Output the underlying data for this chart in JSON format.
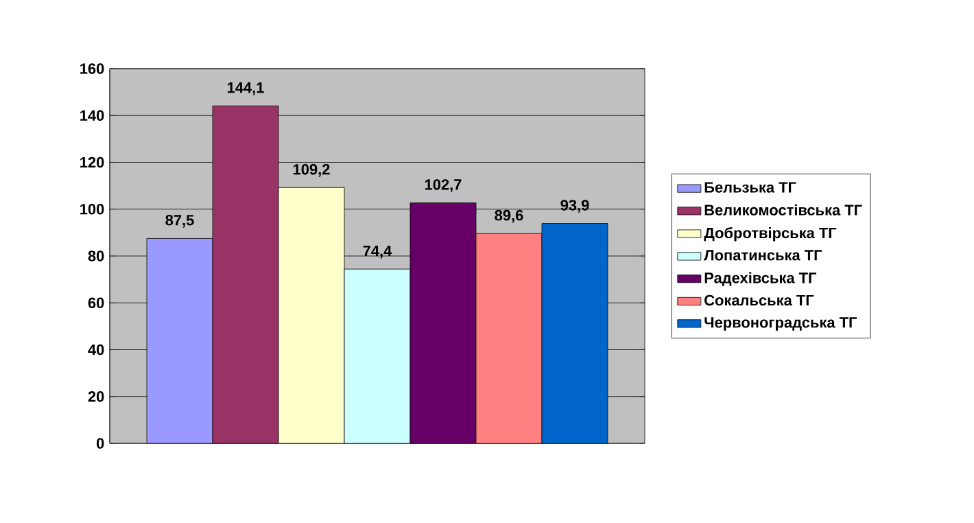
{
  "chart_data": {
    "type": "bar",
    "categories": [
      null
    ],
    "series": [
      {
        "name": "Бельзька ТГ",
        "color": "#9999ff",
        "values": [
          87.5
        ],
        "value_labels": [
          "87,5"
        ]
      },
      {
        "name": "Великомостівська ТГ",
        "color": "#993366",
        "values": [
          144.1
        ],
        "value_labels": [
          "144,1"
        ]
      },
      {
        "name": "Добротвірська ТГ",
        "color": "#ffffcc",
        "values": [
          109.2
        ],
        "value_labels": [
          "109,2"
        ]
      },
      {
        "name": "Лопатинська ТГ",
        "color": "#ccffff",
        "values": [
          74.4
        ],
        "value_labels": [
          "74,4"
        ]
      },
      {
        "name": "Радехівська ТГ",
        "color": "#660066",
        "values": [
          102.7
        ],
        "value_labels": [
          "102,7"
        ]
      },
      {
        "name": "Сокальська ТГ",
        "color": "#ff8080",
        "values": [
          89.6
        ],
        "value_labels": [
          "89,6"
        ]
      },
      {
        "name": "Червоноградська ТГ",
        "color": "#0066cc",
        "values": [
          93.9
        ],
        "value_labels": [
          "93,9"
        ]
      }
    ],
    "ylim": [
      0,
      160
    ],
    "yticks": [
      0,
      20,
      40,
      60,
      80,
      100,
      120,
      140,
      160
    ],
    "grid": "y",
    "legend": "right"
  }
}
